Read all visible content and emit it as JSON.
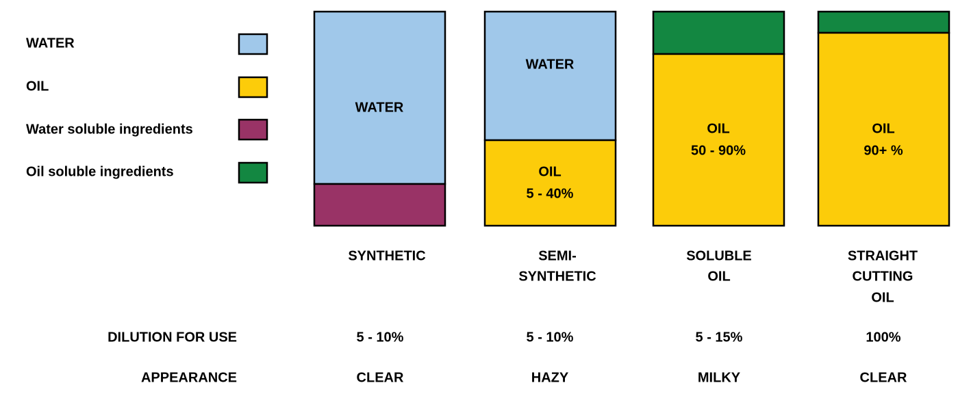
{
  "legend": [
    {
      "label": "WATER"
    },
    {
      "label": "OIL"
    },
    {
      "label": "Water soluble ingredients"
    },
    {
      "label": "Oil soluble ingredients"
    }
  ],
  "columns": [
    {
      "segment_labels": [
        [
          "WATER"
        ]
      ],
      "name": [
        "SYNTHETIC"
      ],
      "dilution": "5 - 10%",
      "appearance": "CLEAR"
    },
    {
      "segment_labels": [
        [
          "WATER"
        ],
        [
          "OIL",
          "5 - 40%"
        ]
      ],
      "name": [
        "SEMI-",
        "SYNTHETIC"
      ],
      "dilution": "5 - 10%",
      "appearance": "HAZY"
    },
    {
      "segment_labels": [
        [
          "OIL",
          "50 - 90%"
        ]
      ],
      "name": [
        "SOLUBLE",
        "OIL"
      ],
      "dilution": "5 - 15%",
      "appearance": "MILKY"
    },
    {
      "segment_labels": [
        [
          "OIL",
          "90+ %"
        ]
      ],
      "name": [
        "STRAIGHT",
        "CUTTING",
        "OIL"
      ],
      "dilution": "100%",
      "appearance": "CLEAR"
    }
  ],
  "rows": {
    "dilution_label": "DILUTION FOR USE",
    "appearance_label": "APPEARANCE"
  }
}
